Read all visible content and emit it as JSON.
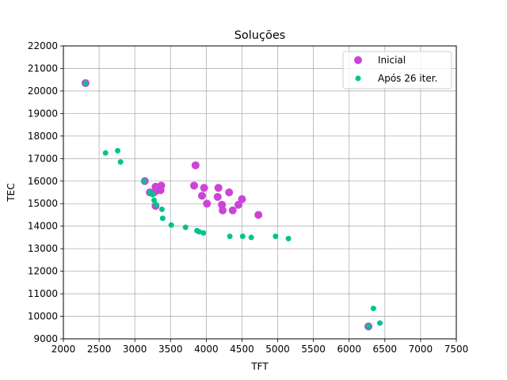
{
  "chart_data": {
    "type": "scatter",
    "title": "Soluções",
    "xlabel": "TFT",
    "ylabel": "TEC",
    "xlim": [
      2000,
      7500
    ],
    "ylim": [
      9000,
      22000
    ],
    "xticks": [
      2000,
      2500,
      3000,
      3500,
      4000,
      4500,
      5000,
      5500,
      6000,
      6500,
      7000,
      7500
    ],
    "yticks": [
      9000,
      10000,
      11000,
      12000,
      13000,
      14000,
      15000,
      16000,
      17000,
      18000,
      19000,
      20000,
      21000,
      22000
    ],
    "grid": true,
    "legend_position": "top-right",
    "series": [
      {
        "name": "Inicial",
        "color": "#cc44d6",
        "marker": "large-circle",
        "points": [
          [
            2310,
            20350
          ],
          [
            3140,
            16000
          ],
          [
            3210,
            15500
          ],
          [
            3270,
            15500
          ],
          [
            3290,
            15750
          ],
          [
            3330,
            15600
          ],
          [
            3360,
            15600
          ],
          [
            3370,
            15800
          ],
          [
            3290,
            14900
          ],
          [
            3830,
            15800
          ],
          [
            3850,
            16700
          ],
          [
            3940,
            15350
          ],
          [
            3970,
            15700
          ],
          [
            4010,
            15000
          ],
          [
            4160,
            15300
          ],
          [
            4170,
            15700
          ],
          [
            4220,
            14950
          ],
          [
            4230,
            14700
          ],
          [
            4320,
            15500
          ],
          [
            4370,
            14700
          ],
          [
            4450,
            14950
          ],
          [
            4500,
            15200
          ],
          [
            4730,
            14500
          ],
          [
            6270,
            9550
          ]
        ]
      },
      {
        "name": "Após 26 iter.",
        "color": "#00c48c",
        "marker": "small-circle",
        "points": [
          [
            2310,
            20350
          ],
          [
            2590,
            17250
          ],
          [
            2760,
            17350
          ],
          [
            2800,
            16850
          ],
          [
            3130,
            16000
          ],
          [
            3210,
            15500
          ],
          [
            3250,
            15400
          ],
          [
            3270,
            15150
          ],
          [
            3300,
            14950
          ],
          [
            3380,
            14750
          ],
          [
            3390,
            14350
          ],
          [
            3510,
            14050
          ],
          [
            3710,
            13950
          ],
          [
            3870,
            13800
          ],
          [
            3900,
            13750
          ],
          [
            3960,
            13700
          ],
          [
            4330,
            13550
          ],
          [
            4510,
            13550
          ],
          [
            4630,
            13500
          ],
          [
            4970,
            13550
          ],
          [
            5150,
            13450
          ],
          [
            6270,
            9550
          ],
          [
            6340,
            10350
          ],
          [
            6430,
            9700
          ]
        ]
      }
    ]
  }
}
